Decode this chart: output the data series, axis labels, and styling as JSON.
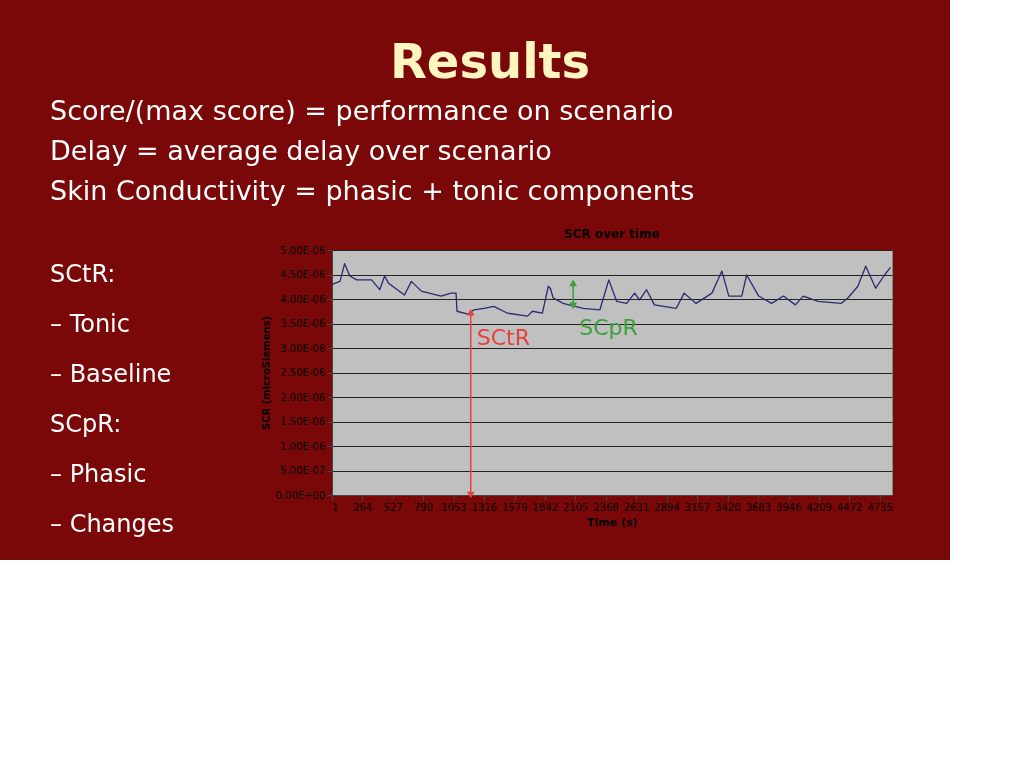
{
  "chart_data": {
    "type": "line",
    "title": "Results",
    "subtitle": "SCR over time",
    "xlabel": "Time (s)",
    "ylabel": "SCR (microSiemens)",
    "annotations": [
      "Score/(max score) = performance on scenario",
      "Delay = average delay over scenario",
      "Skin Conductivity = phasic + tonic components",
      "SCtR:",
      "– Tonic",
      "– Baseline",
      "SCpR:",
      "– Phasic",
      "– Changes",
      {
        "text": "SCtR",
        "x": 1200,
        "y": 3.73e-06
      },
      {
        "text": "SCpR",
        "x": 2085,
        "y": 4.33e-06
      }
    ],
    "x": [
      1,
      70,
      110,
      155,
      215,
      344,
      413,
      456,
      490,
      627,
      687,
      773,
      944,
      1030,
      1073,
      1081,
      1176,
      1227,
      1313,
      1399,
      1518,
      1690,
      1733,
      1819,
      1870,
      1887,
      1913,
      1998,
      2170,
      2316,
      2393,
      2461,
      2547,
      2616,
      2659,
      2719,
      2787,
      2976,
      3044,
      3147,
      3284,
      3370,
      3430,
      3542,
      3584,
      3688,
      3799,
      3902,
      4005,
      4073,
      4202,
      4399,
      4459,
      4545,
      4613,
      4699,
      4776,
      4828
    ],
    "series": [
      {
        "color": "#2b2b70",
        "values": [
          4.3e-06,
          4.36e-06,
          4.72e-06,
          4.47e-06,
          4.39e-06,
          4.39e-06,
          4.19e-06,
          4.47e-06,
          4.32e-06,
          4.08e-06,
          4.36e-06,
          4.16e-06,
          4.06e-06,
          4.12e-06,
          4.12e-06,
          3.75e-06,
          3.69e-06,
          3.78e-06,
          3.81e-06,
          3.85e-06,
          3.71e-06,
          3.65e-06,
          3.75e-06,
          3.71e-06,
          4.26e-06,
          4.22e-06,
          4.02e-06,
          3.91e-06,
          3.81e-06,
          3.78e-06,
          4.39e-06,
          3.95e-06,
          3.91e-06,
          4.12e-06,
          3.98e-06,
          4.19e-06,
          3.88e-06,
          3.81e-06,
          4.12e-06,
          3.91e-06,
          4.12e-06,
          4.57e-06,
          4.06e-06,
          4.06e-06,
          4.49e-06,
          4.06e-06,
          3.91e-06,
          4.06e-06,
          3.88e-06,
          4.06e-06,
          3.95e-06,
          3.91e-06,
          4.02e-06,
          4.26e-06,
          4.67e-06,
          4.22e-06,
          4.49e-06,
          4.65e-06
        ]
      }
    ],
    "xlim": [
      1,
      4840
    ],
    "xticks": [
      1,
      264,
      527,
      790,
      1053,
      1316,
      1579,
      1842,
      2105,
      2368,
      2631,
      2894,
      3157,
      3420,
      3683,
      3946,
      4209,
      4472,
      4735
    ],
    "ylim": [
      0,
      5e-06
    ],
    "yticks": [
      {
        "value": 0,
        "label": "0.00E+00"
      },
      {
        "value": 5e-07,
        "label": "5.00E-07"
      },
      {
        "value": 1e-06,
        "label": "1.00E-06"
      },
      {
        "value": 1.5e-06,
        "label": "1.50E-06"
      },
      {
        "value": 2e-06,
        "label": "2.00E-06"
      },
      {
        "value": 2.5e-06,
        "label": "2.50E-06"
      },
      {
        "value": 3e-06,
        "label": "3.00E-06"
      },
      {
        "value": 3.5e-06,
        "label": "3.50E-06"
      },
      {
        "value": 4e-06,
        "label": "4.00E-06"
      },
      {
        "value": 4.5e-06,
        "label": "4.50E-06"
      },
      {
        "value": 5e-06,
        "label": "5.00E-06"
      }
    ],
    "grid": "y",
    "marker": "none",
    "line_style": "solid"
  }
}
